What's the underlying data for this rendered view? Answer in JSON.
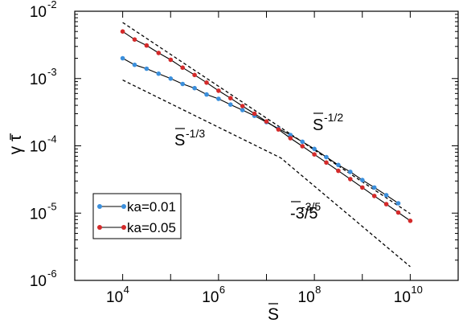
{
  "chart_data": {
    "type": "scatter",
    "xlabel": "S",
    "ylabel": "γ τ",
    "xscale": "log",
    "yscale": "log",
    "xlim": [
      1000,
      100000000000
    ],
    "ylim": [
      1e-06,
      0.01
    ],
    "x_tick_labels": [
      {
        "value": 10000,
        "base": "10",
        "exp": "4"
      },
      {
        "value": 1000000,
        "base": "10",
        "exp": "6"
      },
      {
        "value": 100000000,
        "base": "10",
        "exp": "8"
      },
      {
        "value": 10000000000,
        "base": "10",
        "exp": "10"
      }
    ],
    "y_tick_labels": [
      {
        "value": 0.01,
        "base": "10",
        "exp": "-2"
      },
      {
        "value": 0.001,
        "base": "10",
        "exp": "-3"
      },
      {
        "value": 0.0001,
        "base": "10",
        "exp": "-4"
      },
      {
        "value": 1e-05,
        "base": "10",
        "exp": "-5"
      },
      {
        "value": 1e-06,
        "base": "10",
        "exp": "-6"
      }
    ],
    "grid": false,
    "legend_position": "lower-left",
    "series": [
      {
        "name": "ka=0.01",
        "color": "#3b8fdc",
        "log10_x": [
          4.0,
          4.25,
          4.5,
          4.75,
          5.0,
          5.25,
          5.5,
          5.75,
          6.0,
          6.25,
          6.5,
          6.75,
          7.0,
          7.25,
          7.5,
          7.75,
          8.0,
          8.25,
          8.5,
          8.75,
          9.0,
          9.25,
          9.5,
          9.75
        ],
        "y": [
          0.002,
          0.0016,
          0.0014,
          0.00118,
          0.001,
          0.00083,
          0.00072,
          0.00058,
          0.0005,
          0.00041,
          0.00034,
          0.00028,
          0.000225,
          0.00018,
          0.000145,
          0.000115,
          9e-05,
          6.8e-05,
          5.2e-05,
          4.1e-05,
          3.1e-05,
          2.4e-05,
          1.85e-05,
          1.4e-05
        ]
      },
      {
        "name": "ka=0.05",
        "color": "#d42a2a",
        "log10_x": [
          4.0,
          4.25,
          4.5,
          4.75,
          5.0,
          5.25,
          5.5,
          5.75,
          6.0,
          6.25,
          6.5,
          6.75,
          7.0,
          7.25,
          7.5,
          7.75,
          8.0,
          8.25,
          8.5,
          8.75,
          9.0,
          9.25,
          9.5,
          9.75,
          10.0
        ],
        "y": [
          0.005,
          0.0038,
          0.0031,
          0.0024,
          0.0019,
          0.00145,
          0.00113,
          0.00087,
          0.00066,
          0.00051,
          0.00039,
          0.0003,
          0.00023,
          0.000175,
          0.00013,
          9.85e-05,
          7.45e-05,
          5.65e-05,
          4.25e-05,
          3.2e-05,
          2.4e-05,
          1.8e-05,
          1.36e-05,
          1.02e-05,
          7.7e-06
        ]
      }
    ],
    "guide_lines": [
      {
        "label_base": "S",
        "label_exp": "-1/2",
        "points": [
          [
            10000,
            0.0068
          ],
          [
            10000000000,
            9.8e-06
          ]
        ]
      },
      {
        "label_base": "S",
        "label_exp": "-1/3",
        "label_exp2": "-3/5",
        "points": [
          [
            10000,
            0.00095
          ],
          [
            20000000,
            6.6e-05
          ],
          [
            10000000000,
            1.6e-06
          ]
        ]
      }
    ]
  }
}
